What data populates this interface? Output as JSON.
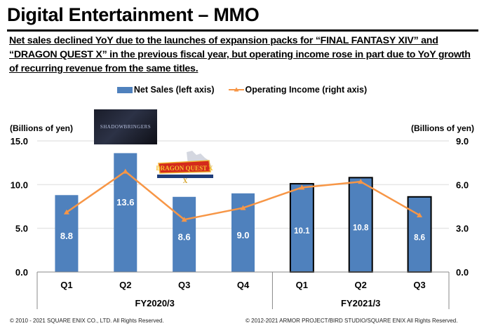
{
  "page": {
    "title": "Digital Entertainment – MMO",
    "subtitle": "Net sales declined YoY due to the launches of expansion packs for “FINAL FANTASY XIV” and “DRAGON QUEST X” in the previous fiscal year, but operating income rose in part due to YoY growth of recurring revenue from the same titles.",
    "footer_left": "© 2010 - 2021 SQUARE ENIX CO., LTD. All Rights Reserved.",
    "footer_right": "© 2012-2021 ARMOR PROJECT/BIRD STUDIO/SQUARE ENIX All Rights Reserved.",
    "logos": {
      "ff14": "SHADOWBRINGERS",
      "dq10": "DRAGON QUEST X"
    }
  },
  "colors": {
    "bar": "#4f81bd",
    "line": "#f79646",
    "grid": "#e6e6e6",
    "bar_outline_fy2021": "#000000"
  },
  "chart_data": {
    "type": "bar",
    "title": "",
    "categories": [
      "Q1",
      "Q2",
      "Q3",
      "Q4",
      "Q1",
      "Q2",
      "Q3"
    ],
    "groups": [
      {
        "label": "FY2020/3",
        "categories": [
          "Q1",
          "Q2",
          "Q3",
          "Q4"
        ]
      },
      {
        "label": "FY2021/3",
        "categories": [
          "Q1",
          "Q2",
          "Q3"
        ]
      }
    ],
    "series": [
      {
        "name": "Net Sales (left axis)",
        "type": "bar",
        "axis": "left",
        "values": [
          8.8,
          13.6,
          8.6,
          9.0,
          10.1,
          10.8,
          8.6
        ],
        "labels": [
          "8.8",
          "13.6",
          "8.6",
          "9.0",
          "10.1",
          "10.8",
          "8.6"
        ]
      },
      {
        "name": "Operating Income (right axis)",
        "type": "line",
        "axis": "right",
        "marker": "triangle",
        "values": [
          4.1,
          6.9,
          3.6,
          4.4,
          5.8,
          6.2,
          3.9
        ]
      }
    ],
    "ylabel_left": "(Billions of yen)",
    "ylabel_right": "(Billions of yen)",
    "ylim_left": [
      0,
      15
    ],
    "ylim_right": [
      0,
      9
    ],
    "yticks_left": [
      "0.0",
      "5.0",
      "10.0",
      "15.0"
    ],
    "yticks_right": [
      "0.0",
      "3.0",
      "6.0",
      "9.0"
    ],
    "grid": true,
    "legend": "top-center"
  }
}
